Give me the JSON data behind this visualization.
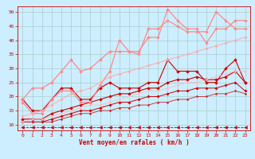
{
  "bg_color": "#cceeff",
  "grid_color": "#aacccc",
  "xlabel": "Vent moyen/en rafales ( km/h )",
  "xlabel_color": "#cc0000",
  "tick_color": "#cc0000",
  "xlim": [
    -0.5,
    23.5
  ],
  "ylim": [
    8,
    52
  ],
  "yticks": [
    10,
    15,
    20,
    25,
    30,
    35,
    40,
    45,
    50
  ],
  "xticks": [
    0,
    1,
    2,
    3,
    4,
    5,
    6,
    7,
    8,
    9,
    10,
    11,
    12,
    13,
    14,
    15,
    16,
    17,
    18,
    19,
    20,
    21,
    22,
    23
  ],
  "lines": [
    {
      "x": [
        0,
        1,
        2,
        3,
        4,
        5,
        6,
        7,
        8,
        9,
        10,
        11,
        12,
        13,
        14,
        15,
        16,
        17,
        18,
        19,
        20,
        21,
        22,
        23
      ],
      "y": [
        19,
        15,
        15,
        19,
        23,
        23,
        19,
        19,
        23,
        25,
        23,
        23,
        23,
        25,
        25,
        33,
        29,
        29,
        29,
        25,
        25,
        30,
        33,
        25
      ],
      "color": "#cc0000",
      "marker": "D",
      "ms": 2.0,
      "lw": 0.8,
      "ls": "-"
    },
    {
      "x": [
        0,
        1,
        2,
        3,
        4,
        5,
        6,
        7,
        8,
        9,
        10,
        11,
        12,
        13,
        14,
        15,
        16,
        17,
        18,
        19,
        20,
        21,
        22,
        23
      ],
      "y": [
        12,
        12,
        12,
        14,
        15,
        16,
        17,
        18,
        19,
        20,
        21,
        21,
        22,
        23,
        23,
        25,
        26,
        26,
        27,
        26,
        26,
        27,
        29,
        25
      ],
      "color": "#cc0000",
      "marker": "D",
      "ms": 2.0,
      "lw": 0.8,
      "ls": "-"
    },
    {
      "x": [
        0,
        1,
        2,
        3,
        4,
        5,
        6,
        7,
        8,
        9,
        10,
        11,
        12,
        13,
        14,
        15,
        16,
        17,
        18,
        19,
        20,
        21,
        22,
        23
      ],
      "y": [
        11,
        11,
        11,
        12,
        13,
        14,
        15,
        15,
        16,
        17,
        18,
        18,
        19,
        20,
        20,
        21,
        22,
        22,
        23,
        23,
        23,
        24,
        25,
        22
      ],
      "color": "#cc0000",
      "marker": "D",
      "ms": 1.8,
      "lw": 0.7,
      "ls": "-"
    },
    {
      "x": [
        0,
        1,
        2,
        3,
        4,
        5,
        6,
        7,
        8,
        9,
        10,
        11,
        12,
        13,
        14,
        15,
        16,
        17,
        18,
        19,
        20,
        21,
        22,
        23
      ],
      "y": [
        11,
        11,
        11,
        11,
        12,
        13,
        14,
        14,
        15,
        15,
        16,
        16,
        17,
        17,
        18,
        18,
        19,
        19,
        20,
        20,
        21,
        21,
        22,
        21
      ],
      "color": "#cc2222",
      "marker": "D",
      "ms": 1.5,
      "lw": 0.6,
      "ls": "-"
    },
    {
      "x": [
        0,
        1,
        2,
        3,
        4,
        5,
        6,
        7,
        8,
        9,
        10,
        11,
        12,
        13,
        14,
        15,
        16,
        17,
        18,
        19,
        20,
        21,
        22,
        23
      ],
      "y": [
        18,
        14,
        14,
        19,
        22,
        22,
        18,
        18,
        24,
        29,
        40,
        36,
        36,
        41,
        41,
        51,
        47,
        44,
        44,
        39,
        44,
        44,
        47,
        47
      ],
      "color": "#ff8888",
      "marker": "D",
      "ms": 2.0,
      "lw": 0.9,
      "ls": "-"
    },
    {
      "x": [
        0,
        1,
        2,
        3,
        4,
        5,
        6,
        7,
        8,
        9,
        10,
        11,
        12,
        13,
        14,
        15,
        16,
        17,
        18,
        19,
        20,
        21,
        22,
        23
      ],
      "y": [
        19,
        23,
        23,
        25,
        29,
        33,
        29,
        30,
        33,
        36,
        36,
        36,
        35,
        44,
        44,
        47,
        45,
        43,
        43,
        43,
        50,
        47,
        44,
        44
      ],
      "color": "#ff8888",
      "marker": "D",
      "ms": 2.0,
      "lw": 0.9,
      "ls": "-"
    },
    {
      "x": [
        0,
        1,
        2,
        3,
        4,
        5,
        6,
        7,
        8,
        9,
        10,
        11,
        12,
        13,
        14,
        15,
        16,
        17,
        18,
        19,
        20,
        21,
        22,
        23
      ],
      "y": [
        13,
        14,
        15,
        17,
        19,
        21,
        22,
        23,
        25,
        27,
        28,
        29,
        30,
        31,
        32,
        33,
        34,
        35,
        36,
        37,
        38,
        39,
        40,
        41
      ],
      "color": "#ffaaaa",
      "marker": "D",
      "ms": 1.8,
      "lw": 0.7,
      "ls": "-"
    },
    {
      "x": [
        0,
        1,
        2,
        3,
        4,
        5,
        6,
        7,
        8,
        9,
        10,
        11,
        12,
        13,
        14,
        15,
        16,
        17,
        18,
        19,
        20,
        21,
        22,
        23
      ],
      "y": [
        11,
        12,
        12,
        13,
        14,
        15,
        16,
        17,
        17,
        18,
        19,
        20,
        21,
        22,
        22,
        23,
        24,
        25,
        25,
        26,
        27,
        28,
        29,
        29
      ],
      "color": "#ffbbbb",
      "marker": "D",
      "ms": 1.5,
      "lw": 0.6,
      "ls": "-"
    },
    {
      "x": [
        0,
        1,
        2,
        3,
        4,
        5,
        6,
        7,
        8,
        9,
        10,
        11,
        12,
        13,
        14,
        15,
        16,
        17,
        18,
        19,
        20,
        21,
        22,
        23
      ],
      "y": [
        9,
        9,
        9,
        9,
        9,
        9,
        9,
        9,
        9,
        9,
        9,
        9,
        9,
        9,
        9,
        9,
        9,
        9,
        9,
        9,
        9,
        9,
        9,
        9
      ],
      "color": "#cc0000",
      "marker": "<",
      "ms": 3.0,
      "lw": 0.6,
      "ls": "--"
    }
  ]
}
